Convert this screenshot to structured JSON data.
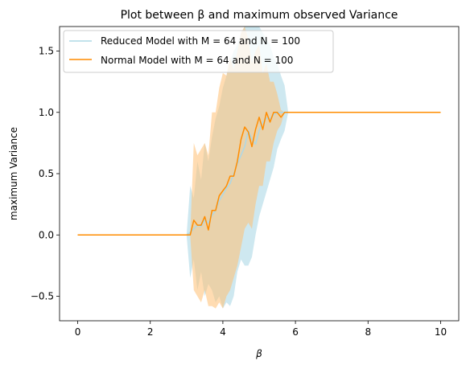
{
  "chart_data": {
    "type": "line",
    "title": "Plot between β and maximum observed Variance",
    "xlabel": "β",
    "ylabel": "maximum Variance",
    "xlim": [
      -0.5,
      10.5
    ],
    "ylim": [
      -0.7,
      1.7
    ],
    "xticks": [
      0,
      2,
      4,
      6,
      8,
      10
    ],
    "xtick_labels": [
      "0",
      "2",
      "4",
      "6",
      "8",
      "10"
    ],
    "yticks": [
      -0.5,
      0.0,
      0.5,
      1.0,
      1.5
    ],
    "ytick_labels": [
      "−0.5",
      "0.0",
      "0.5",
      "1.0",
      "1.5"
    ],
    "grid": false,
    "legend_position": "top-left",
    "series": [
      {
        "name": "Reduced Model with M = 64 and N = 100",
        "color": "#add8e6",
        "fill_alpha": 0.6,
        "x": [
          0,
          1,
          2,
          3.0,
          3.1,
          3.2,
          3.3,
          3.4,
          3.5,
          3.6,
          3.7,
          3.8,
          3.9,
          4.0,
          4.1,
          4.2,
          4.3,
          4.4,
          4.5,
          4.6,
          4.7,
          4.8,
          4.9,
          5.0,
          5.1,
          5.2,
          5.3,
          5.4,
          5.5,
          5.6,
          5.7,
          5.8,
          6,
          7,
          8,
          9,
          10
        ],
        "y": [
          0,
          0,
          0,
          0,
          0.02,
          0.05,
          0.08,
          0.07,
          0.12,
          0.1,
          0.16,
          0.2,
          0.28,
          0.33,
          0.38,
          0.42,
          0.5,
          0.58,
          0.65,
          0.72,
          0.85,
          0.78,
          0.74,
          0.85,
          0.92,
          0.95,
          0.95,
          0.98,
          1.0,
          1.0,
          1.0,
          1.0,
          1.0,
          1.0,
          1.0,
          1.0,
          1.0
        ],
        "lower": [
          0,
          0,
          0,
          0,
          -0.35,
          -0.2,
          -0.45,
          -0.3,
          -0.5,
          -0.4,
          -0.45,
          -0.55,
          -0.5,
          -0.6,
          -0.55,
          -0.58,
          -0.5,
          -0.3,
          -0.2,
          -0.25,
          -0.25,
          -0.18,
          0.0,
          0.15,
          0.25,
          0.35,
          0.45,
          0.55,
          0.7,
          0.78,
          0.85,
          1.0,
          1.0,
          1.0,
          1.0,
          1.0,
          1.0
        ],
        "upper": [
          0,
          0,
          0,
          0,
          0.4,
          0.3,
          0.6,
          0.45,
          0.75,
          0.6,
          0.8,
          0.95,
          1.05,
          1.2,
          1.3,
          1.42,
          1.5,
          1.55,
          1.65,
          1.7,
          1.7,
          1.7,
          1.7,
          1.7,
          1.65,
          1.6,
          1.55,
          1.45,
          1.4,
          1.3,
          1.22,
          1.0,
          1.0,
          1.0,
          1.0,
          1.0,
          1.0
        ]
      },
      {
        "name": "Normal Model with M = 64 and N = 100",
        "color": "#ff8c00",
        "fill_color": "#ffbf73",
        "fill_alpha": 0.55,
        "x": [
          0,
          1,
          2,
          3.0,
          3.1,
          3.2,
          3.3,
          3.4,
          3.5,
          3.6,
          3.7,
          3.8,
          3.9,
          4.0,
          4.1,
          4.2,
          4.3,
          4.4,
          4.5,
          4.6,
          4.7,
          4.8,
          4.9,
          5.0,
          5.1,
          5.2,
          5.3,
          5.4,
          5.5,
          5.6,
          5.7,
          5.8,
          6,
          7,
          8,
          9,
          10
        ],
        "y": [
          0,
          0,
          0,
          0,
          0.0,
          0.12,
          0.08,
          0.08,
          0.15,
          0.04,
          0.2,
          0.2,
          0.32,
          0.36,
          0.4,
          0.48,
          0.48,
          0.6,
          0.78,
          0.88,
          0.84,
          0.72,
          0.86,
          0.96,
          0.86,
          1.0,
          0.92,
          1.0,
          1.0,
          0.96,
          1.0,
          1.0,
          1.0,
          1.0,
          1.0,
          1.0,
          1.0
        ],
        "lower": [
          0,
          0,
          0,
          0,
          0.0,
          -0.45,
          -0.5,
          -0.55,
          -0.45,
          -0.58,
          -0.58,
          -0.6,
          -0.55,
          -0.6,
          -0.5,
          -0.45,
          -0.35,
          -0.25,
          -0.1,
          0.05,
          0.1,
          0.05,
          0.25,
          0.4,
          0.4,
          0.6,
          0.6,
          0.75,
          0.85,
          0.9,
          1.0,
          1.0,
          1.0,
          1.0,
          1.0,
          1.0,
          1.0
        ],
        "upper": [
          0,
          0,
          0,
          0,
          0.0,
          0.75,
          0.65,
          0.7,
          0.75,
          0.65,
          1.0,
          1.0,
          1.2,
          1.32,
          1.3,
          1.45,
          1.35,
          1.5,
          1.65,
          1.7,
          1.6,
          1.4,
          1.5,
          1.55,
          1.32,
          1.4,
          1.25,
          1.25,
          1.15,
          1.02,
          1.0,
          1.0,
          1.0,
          1.0,
          1.0,
          1.0,
          1.0
        ]
      }
    ]
  }
}
